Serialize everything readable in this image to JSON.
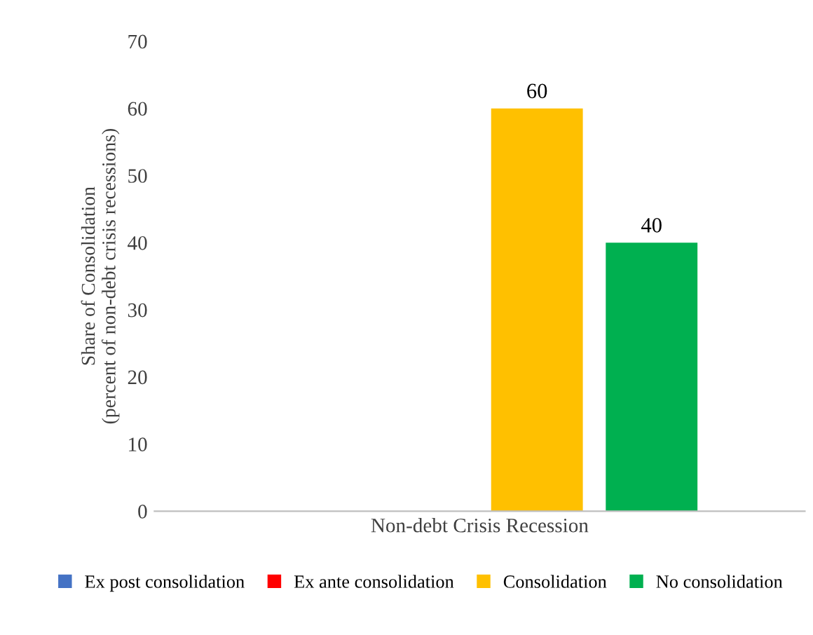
{
  "chart_data": {
    "type": "bar",
    "ylabel": "Share of Consolidation\n(percent of non-debt crisis recessions)",
    "categories": [
      "Non-debt Crisis Recession"
    ],
    "series": [
      {
        "name": "Ex post consolidation",
        "color": "#4472c4",
        "values": [
          null
        ]
      },
      {
        "name": "Ex ante consolidation",
        "color": "#ff0000",
        "values": [
          null
        ]
      },
      {
        "name": "Consolidation",
        "color": "#ffc000",
        "values": [
          60
        ],
        "value_labels": [
          "60"
        ]
      },
      {
        "name": "No consolidation",
        "color": "#00b050",
        "values": [
          40
        ],
        "value_labels": [
          "40"
        ]
      }
    ],
    "ylim": [
      0,
      70
    ],
    "yticks": [
      0,
      10,
      20,
      30,
      40,
      50,
      60,
      70
    ],
    "grid": false,
    "legend": "bottom"
  }
}
